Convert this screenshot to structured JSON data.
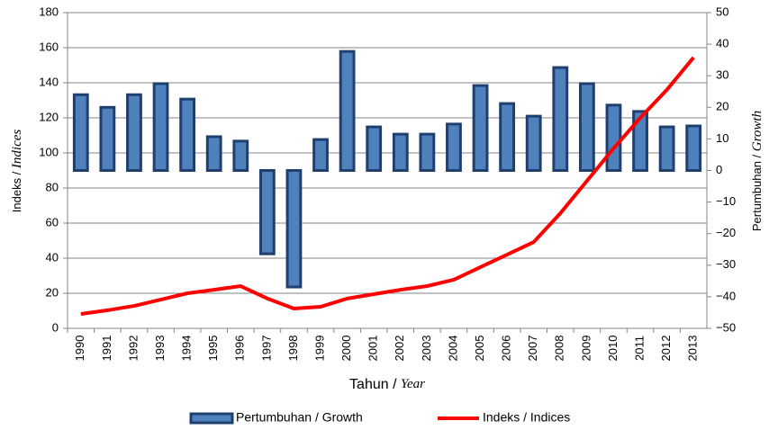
{
  "chart_data": {
    "type": "bar-line",
    "categories": [
      "1990",
      "1991",
      "1992",
      "1993",
      "1994",
      "1995",
      "1996",
      "1997",
      "1998",
      "1999",
      "2000",
      "2001",
      "2002",
      "2003",
      "2004",
      "2005",
      "2006",
      "2007",
      "2008",
      "2009",
      "2010",
      "2011",
      "2012",
      "2013"
    ],
    "series": [
      {
        "name": "Pertumbuhan / Growth",
        "type": "bar",
        "axis": "y2",
        "color": "#4f81bd",
        "edgecolor": "#1f3f6e",
        "values": [
          24,
          20,
          24,
          27.5,
          22.6,
          10.7,
          9.3,
          -26.4,
          -36.9,
          9.8,
          37.7,
          13.8,
          11.5,
          11.5,
          14.7,
          26.9,
          21.2,
          17.2,
          32.6,
          27.5,
          20.7,
          18.7,
          13.8,
          14.1
        ]
      },
      {
        "name": "Indeks / Indices",
        "type": "line",
        "axis": "y",
        "color": "#ff0000",
        "values": [
          8.2,
          10.3,
          12.8,
          16.4,
          20,
          22,
          24.1,
          17,
          11.3,
          12.3,
          17,
          19.5,
          22,
          24.1,
          27.7,
          34.9,
          42,
          49.2,
          65.6,
          84.1,
          102.6,
          120,
          136,
          154.4
        ]
      }
    ],
    "xlabel": {
      "text": "Tahun /",
      "italic": "Year"
    },
    "ylabel": {
      "text": "Indeks /",
      "italic": "Indices"
    },
    "y2label": {
      "text": "Pertumbuhan /",
      "italic": "Growth"
    },
    "ylim": [
      0,
      180
    ],
    "yticks": [
      0,
      20,
      40,
      60,
      80,
      100,
      120,
      140,
      160,
      180
    ],
    "y2lim": [
      -50,
      50
    ],
    "y2ticks": [
      {
        "value": -50,
        "label": "−50"
      },
      {
        "value": -40,
        "label": "−40"
      },
      {
        "value": -30,
        "label": "−30"
      },
      {
        "value": -20,
        "label": "−20"
      },
      {
        "value": -10,
        "label": "−10"
      },
      0,
      10,
      20,
      30,
      40,
      50
    ],
    "grid": true,
    "legend": "bottom"
  }
}
